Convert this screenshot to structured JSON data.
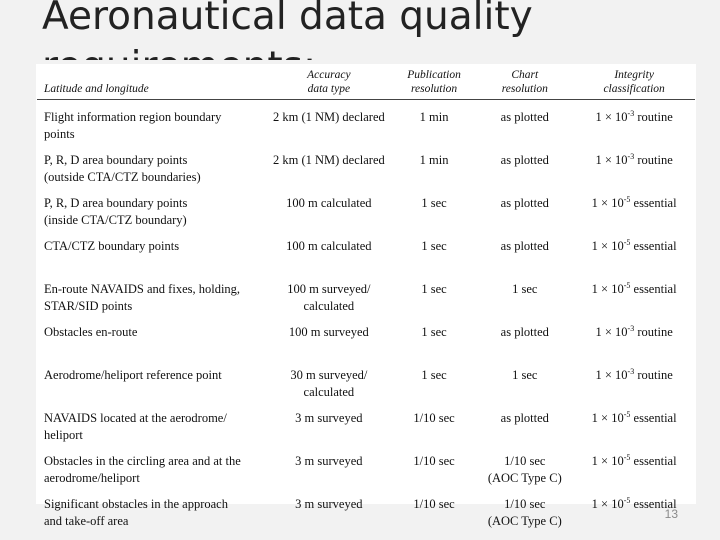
{
  "slide": {
    "title": "Aeronautical data quality requirements:",
    "page_number": "13"
  },
  "table": {
    "headers": [
      [
        "Latitude and longitude"
      ],
      [
        "Accuracy",
        "data type"
      ],
      [
        "Publication",
        "resolution"
      ],
      [
        "Chart",
        "resolution"
      ],
      [
        "Integrity",
        "classification"
      ]
    ],
    "rows": [
      {
        "item": [
          "Flight information region boundary",
          "points"
        ],
        "accuracy": [
          "2 km (1 NM) declared"
        ],
        "publication": [
          "1 min"
        ],
        "chart": [
          "as plotted"
        ],
        "integrity": {
          "base": "1 × 10",
          "exp": "-3",
          "class": "routine"
        }
      },
      {
        "item": [
          "P, R, D area boundary points",
          "(outside CTA/CTZ boundaries)"
        ],
        "accuracy": [
          "2 km (1 NM) declared"
        ],
        "publication": [
          "1 min"
        ],
        "chart": [
          "as plotted"
        ],
        "integrity": {
          "base": "1 × 10",
          "exp": "-3",
          "class": "routine"
        }
      },
      {
        "item": [
          "P, R, D area boundary points",
          "(inside CTA/CTZ boundary)"
        ],
        "accuracy": [
          "100 m calculated"
        ],
        "publication": [
          "1 sec"
        ],
        "chart": [
          "as plotted"
        ],
        "integrity": {
          "base": "1 × 10",
          "exp": "-5",
          "class": "essential"
        }
      },
      {
        "item": [
          "CTA/CTZ boundary points"
        ],
        "accuracy": [
          "100 m calculated"
        ],
        "publication": [
          "1 sec"
        ],
        "chart": [
          "as plotted"
        ],
        "integrity": {
          "base": "1 × 10",
          "exp": "-5",
          "class": "essential"
        }
      },
      {
        "item": [
          "En-route NAVAIDS and fixes, holding,",
          "STAR/SID points"
        ],
        "accuracy": [
          "100 m surveyed/",
          "calculated"
        ],
        "publication": [
          "1 sec"
        ],
        "chart": [
          "1 sec"
        ],
        "integrity": {
          "base": "1 × 10",
          "exp": "-5",
          "class": "essential"
        }
      },
      {
        "item": [
          "Obstacles en-route"
        ],
        "accuracy": [
          "100 m surveyed"
        ],
        "publication": [
          "1 sec"
        ],
        "chart": [
          "as plotted"
        ],
        "integrity": {
          "base": "1 × 10",
          "exp": "-3",
          "class": "routine"
        }
      },
      {
        "item": [
          "Aerodrome/heliport reference point"
        ],
        "accuracy": [
          "30 m surveyed/",
          "calculated"
        ],
        "publication": [
          "1 sec"
        ],
        "chart": [
          "1 sec"
        ],
        "integrity": {
          "base": "1 × 10",
          "exp": "-3",
          "class": "routine"
        }
      },
      {
        "item": [
          "NAVAIDS located at the aerodrome/",
          "heliport"
        ],
        "accuracy": [
          "3 m surveyed"
        ],
        "publication": [
          "1/10 sec"
        ],
        "chart": [
          "as plotted"
        ],
        "integrity": {
          "base": "1 × 10",
          "exp": "-5",
          "class": "essential"
        }
      },
      {
        "item": [
          "Obstacles in the circling area and at the",
          "aerodrome/heliport"
        ],
        "accuracy": [
          "3 m surveyed"
        ],
        "publication": [
          "1/10 sec"
        ],
        "chart": [
          "1/10 sec",
          "(AOC Type C)"
        ],
        "integrity": {
          "base": "1 × 10",
          "exp": "-5",
          "class": "essential"
        }
      },
      {
        "item": [
          "Significant obstacles in the approach",
          "and take-off area"
        ],
        "accuracy": [
          "3 m surveyed"
        ],
        "publication": [
          "1/10 sec"
        ],
        "chart": [
          "1/10 sec",
          "(AOC Type C)"
        ],
        "integrity": {
          "base": "1 × 10",
          "exp": "-5",
          "class": "essential"
        }
      }
    ]
  }
}
